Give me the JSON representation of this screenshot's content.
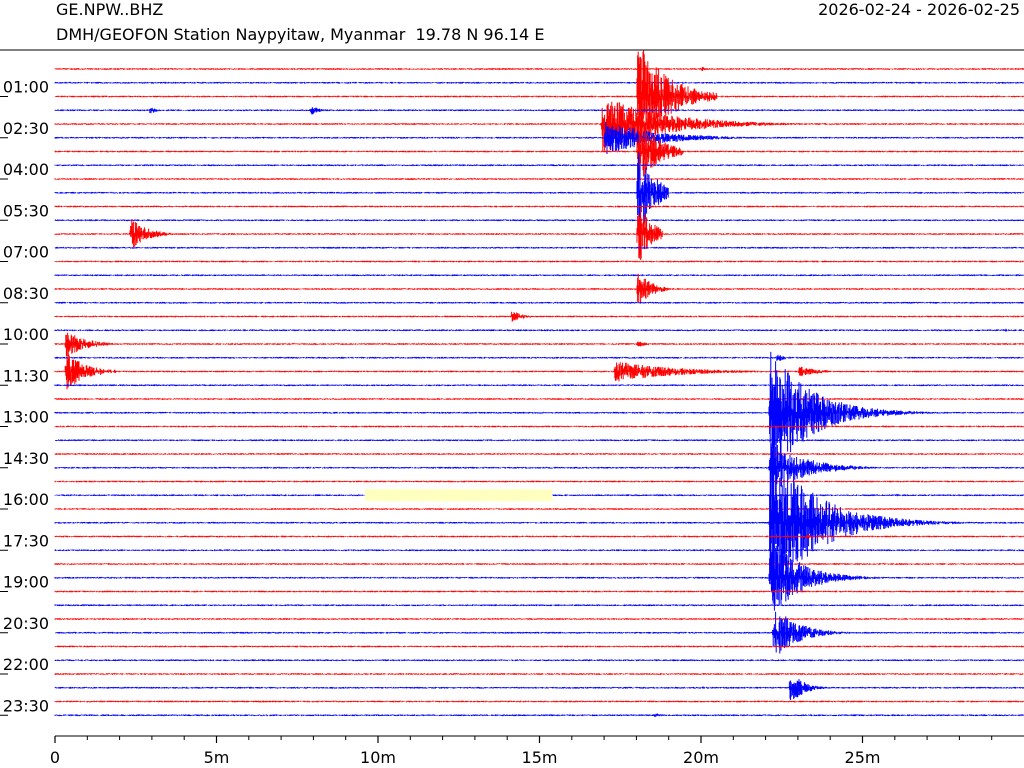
{
  "header": {
    "station_code": "GE.NPW..BHZ",
    "station_desc": "DMH/GEOFON Station Naypyitaw, Myanmar  19.78 N 96.14 E",
    "date_range": "2026-02-24 - 2026-02-25"
  },
  "chart_data": {
    "type": "line",
    "title": "",
    "xlabel": "",
    "ylabel": "",
    "xlim": [
      0,
      30
    ],
    "x_ticks": [
      {
        "value": 0,
        "label": "0"
      },
      {
        "value": 5,
        "label": "5m"
      },
      {
        "value": 10,
        "label": "10m"
      },
      {
        "value": 15,
        "label": "15m"
      },
      {
        "value": 20,
        "label": "20m"
      },
      {
        "value": 25,
        "label": "25m"
      }
    ],
    "x_minor_step": 1,
    "trace_minutes": 30,
    "trace_count": 48,
    "trace_colors": [
      "#ff0000",
      "#0000ff"
    ],
    "y_tick_labels": [
      "01:00",
      "02:30",
      "04:00",
      "05:30",
      "07:00",
      "08:30",
      "10:00",
      "11:30",
      "13:00",
      "14:30",
      "16:00",
      "17:30",
      "19:00",
      "20:30",
      "22:00",
      "23:30"
    ],
    "y_tick_trace_index": [
      2,
      5,
      8,
      11,
      14,
      17,
      20,
      23,
      26,
      29,
      32,
      35,
      38,
      41,
      44,
      47
    ],
    "data_gap": {
      "trace": 31,
      "start_min": 9.6,
      "end_min": 15.4,
      "color": "#ffffc0"
    },
    "events": [
      {
        "trace": 0,
        "start_min": 20.0,
        "duration_min": 0.4,
        "amp": 4,
        "decay_min": 0.15
      },
      {
        "trace": 0,
        "start_min": 7.6,
        "duration_min": 0.2,
        "amp": 2,
        "decay_min": 0.1
      },
      {
        "trace": 3,
        "start_min": 2.9,
        "duration_min": 0.4,
        "amp": 5,
        "decay_min": 0.2
      },
      {
        "trace": 3,
        "start_min": 7.9,
        "duration_min": 0.4,
        "amp": 7,
        "decay_min": 0.2
      },
      {
        "trace": 4,
        "start_min": 16.9,
        "duration_min": 6.0,
        "amp": 30,
        "decay_min": 1.8
      },
      {
        "trace": 5,
        "start_min": 17.0,
        "duration_min": 4.5,
        "amp": 18,
        "decay_min": 1.5
      },
      {
        "trace": 2,
        "start_min": 18.0,
        "duration_min": 2.5,
        "amp": 60,
        "decay_min": 0.9
      },
      {
        "trace": 6,
        "start_min": 18.0,
        "duration_min": 1.5,
        "amp": 40,
        "decay_min": 0.6
      },
      {
        "trace": 9,
        "start_min": 18.0,
        "duration_min": 1.0,
        "amp": 50,
        "decay_min": 0.5
      },
      {
        "trace": 12,
        "start_min": 18.0,
        "duration_min": 0.8,
        "amp": 40,
        "decay_min": 0.4
      },
      {
        "trace": 16,
        "start_min": 18.0,
        "duration_min": 1.0,
        "amp": 22,
        "decay_min": 0.4
      },
      {
        "trace": 20,
        "start_min": 18.0,
        "duration_min": 0.5,
        "amp": 4,
        "decay_min": 0.3
      },
      {
        "trace": 12,
        "start_min": 2.3,
        "duration_min": 1.6,
        "amp": 18,
        "decay_min": 0.5
      },
      {
        "trace": 18,
        "start_min": 14.1,
        "duration_min": 0.8,
        "amp": 9,
        "decay_min": 0.3
      },
      {
        "trace": 20,
        "start_min": 0.3,
        "duration_min": 1.5,
        "amp": 15,
        "decay_min": 0.6
      },
      {
        "trace": 22,
        "start_min": 0.3,
        "duration_min": 1.6,
        "amp": 22,
        "decay_min": 0.6
      },
      {
        "trace": 22,
        "start_min": 17.3,
        "duration_min": 6.0,
        "amp": 11,
        "decay_min": 1.8
      },
      {
        "trace": 22,
        "start_min": 23.0,
        "duration_min": 2.0,
        "amp": 6,
        "decay_min": 0.6
      },
      {
        "trace": 21,
        "start_min": 22.3,
        "duration_min": 0.5,
        "amp": 5,
        "decay_min": 0.3
      },
      {
        "trace": 25,
        "start_min": 22.1,
        "duration_min": 5.0,
        "amp": 70,
        "decay_min": 1.2
      },
      {
        "trace": 29,
        "start_min": 22.1,
        "duration_min": 4.0,
        "amp": 30,
        "decay_min": 1.0
      },
      {
        "trace": 33,
        "start_min": 22.1,
        "duration_min": 8.0,
        "amp": 80,
        "decay_min": 1.4
      },
      {
        "trace": 37,
        "start_min": 22.1,
        "duration_min": 4.0,
        "amp": 45,
        "decay_min": 0.9
      },
      {
        "trace": 41,
        "start_min": 22.2,
        "duration_min": 2.5,
        "amp": 30,
        "decay_min": 0.7
      },
      {
        "trace": 45,
        "start_min": 22.7,
        "duration_min": 1.5,
        "amp": 20,
        "decay_min": 0.4
      },
      {
        "trace": 45,
        "start_min": 20.0,
        "duration_min": 0.6,
        "amp": 2,
        "decay_min": 0.3
      },
      {
        "trace": 47,
        "start_min": 18.5,
        "duration_min": 0.6,
        "amp": 3,
        "decay_min": 0.3
      },
      {
        "trace": 34,
        "start_min": 23.2,
        "duration_min": 0.6,
        "amp": 3,
        "decay_min": 0.3
      },
      {
        "trace": 31,
        "start_min": 26.0,
        "duration_min": 0.3,
        "amp": 2,
        "decay_min": 0.2
      },
      {
        "trace": 19,
        "start_min": 29.4,
        "duration_min": 0.2,
        "amp": 3,
        "decay_min": 0.1
      }
    ]
  }
}
